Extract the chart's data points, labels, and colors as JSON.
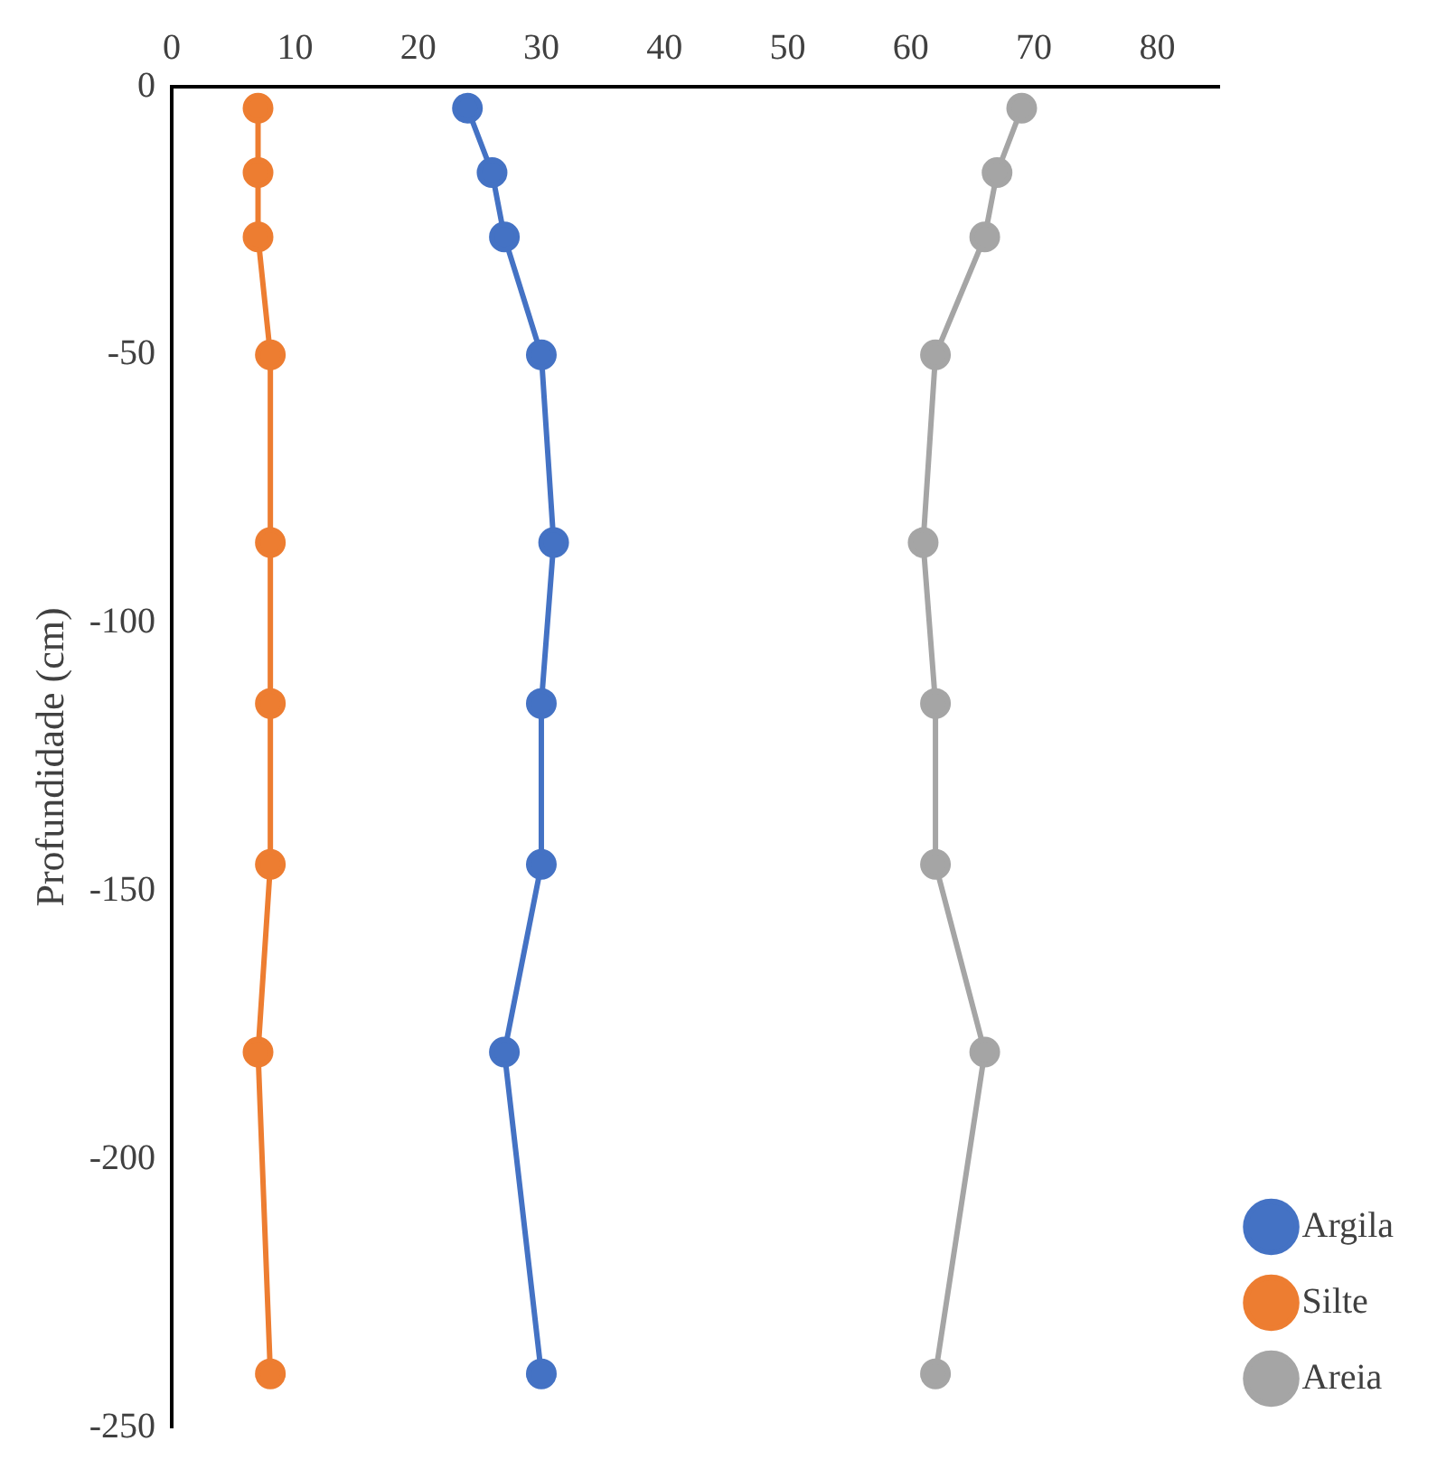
{
  "chart_data": {
    "type": "line",
    "ylabel": "Profundidade (cm)",
    "xlim": [
      0,
      85
    ],
    "xticks": [
      0,
      10,
      20,
      30,
      40,
      50,
      60,
      70,
      80
    ],
    "ylim": [
      -250,
      0
    ],
    "yticks": [
      0,
      -50,
      -100,
      -150,
      -200,
      -250
    ],
    "grid": false,
    "legend": "bottom right",
    "marker": "circle",
    "line_style": "solid",
    "series": [
      {
        "name": "Argila",
        "color": "#4472c4",
        "x": [
          24,
          26,
          27,
          30,
          31,
          30,
          30,
          27,
          30
        ],
        "values": [
          -4,
          -16,
          -28,
          -50,
          -85,
          -115,
          -145,
          -180,
          -240
        ]
      },
      {
        "name": "Silte",
        "color": "#ed7d31",
        "x": [
          7,
          7,
          7,
          8,
          8,
          8,
          8,
          7,
          8
        ],
        "values": [
          -4,
          -16,
          -28,
          -50,
          -85,
          -115,
          -145,
          -180,
          -240
        ]
      },
      {
        "name": "Areia",
        "color": "#a5a5a5",
        "x": [
          69,
          67,
          66,
          62,
          61,
          62,
          62,
          66,
          62
        ],
        "values": [
          -4,
          -16,
          -28,
          -50,
          -85,
          -115,
          -145,
          -180,
          -240
        ]
      }
    ]
  }
}
